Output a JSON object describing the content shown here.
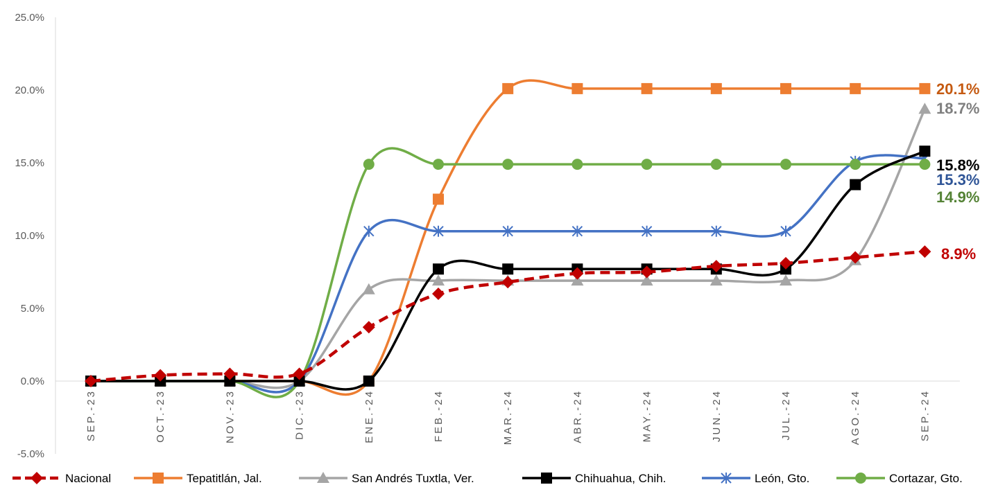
{
  "chart_data": {
    "type": "line",
    "categories": [
      "SEP.-23",
      "OCT.-23",
      "NOV.-23",
      "DIC.-23",
      "ENE.-24",
      "FEB.-24",
      "MAR.-24",
      "ABR.-24",
      "MAY.-24",
      "JUN.-24",
      "JUL.-24",
      "AGO.-24",
      "SEP.-24"
    ],
    "y_ticks": [
      "-5.0%",
      "0.0%",
      "5.0%",
      "10.0%",
      "15.0%",
      "20.0%",
      "25.0%"
    ],
    "ylim": [
      -5,
      25
    ],
    "grid": false,
    "legend_position": "bottom",
    "series": [
      {
        "name": "Nacional",
        "color": "#c00000",
        "marker": "diamond",
        "dash": true,
        "values": [
          0.0,
          0.4,
          0.5,
          0.5,
          3.7,
          6.0,
          6.8,
          7.4,
          7.5,
          7.9,
          8.1,
          8.5,
          8.9
        ],
        "end_label": "8.9%"
      },
      {
        "name": "Tepatitlán, Jal.",
        "color": "#ed7d31",
        "marker": "square",
        "dash": false,
        "values": [
          0.0,
          0.0,
          0.0,
          0.0,
          0.0,
          12.5,
          20.1,
          20.1,
          20.1,
          20.1,
          20.1,
          20.1,
          20.1
        ],
        "end_label": "20.1%"
      },
      {
        "name": "San Andrés Tuxtla, Ver.",
        "color": "#a5a5a5",
        "marker": "triangle",
        "dash": false,
        "values": [
          0.0,
          0.0,
          0.0,
          0.0,
          6.3,
          6.9,
          6.9,
          6.9,
          6.9,
          6.9,
          6.9,
          8.3,
          18.7
        ],
        "end_label": "18.7%"
      },
      {
        "name": "Chihuahua, Chih.",
        "color": "#000000",
        "marker": "square",
        "dash": false,
        "values": [
          0.0,
          0.0,
          0.0,
          0.0,
          0.0,
          7.7,
          7.7,
          7.7,
          7.7,
          7.7,
          7.7,
          13.5,
          15.8
        ],
        "end_label": "15.8%"
      },
      {
        "name": "León, Gto.",
        "color": "#4472c4",
        "marker": "star",
        "dash": false,
        "values": [
          0.0,
          0.0,
          0.0,
          0.0,
          10.3,
          10.3,
          10.3,
          10.3,
          10.3,
          10.3,
          10.3,
          15.1,
          15.3
        ],
        "end_label": "15.3%"
      },
      {
        "name": "Cortazar, Gto.",
        "color": "#70ad47",
        "marker": "circle",
        "dash": false,
        "values": [
          0.0,
          0.0,
          0.0,
          0.0,
          14.9,
          14.9,
          14.9,
          14.9,
          14.9,
          14.9,
          14.9,
          14.9,
          14.9
        ],
        "end_label": "14.9%"
      }
    ],
    "end_label_colors": [
      "#c00000",
      "#c55a11",
      "#7f7f7f",
      "#000000",
      "#2f5597",
      "#548235"
    ]
  }
}
